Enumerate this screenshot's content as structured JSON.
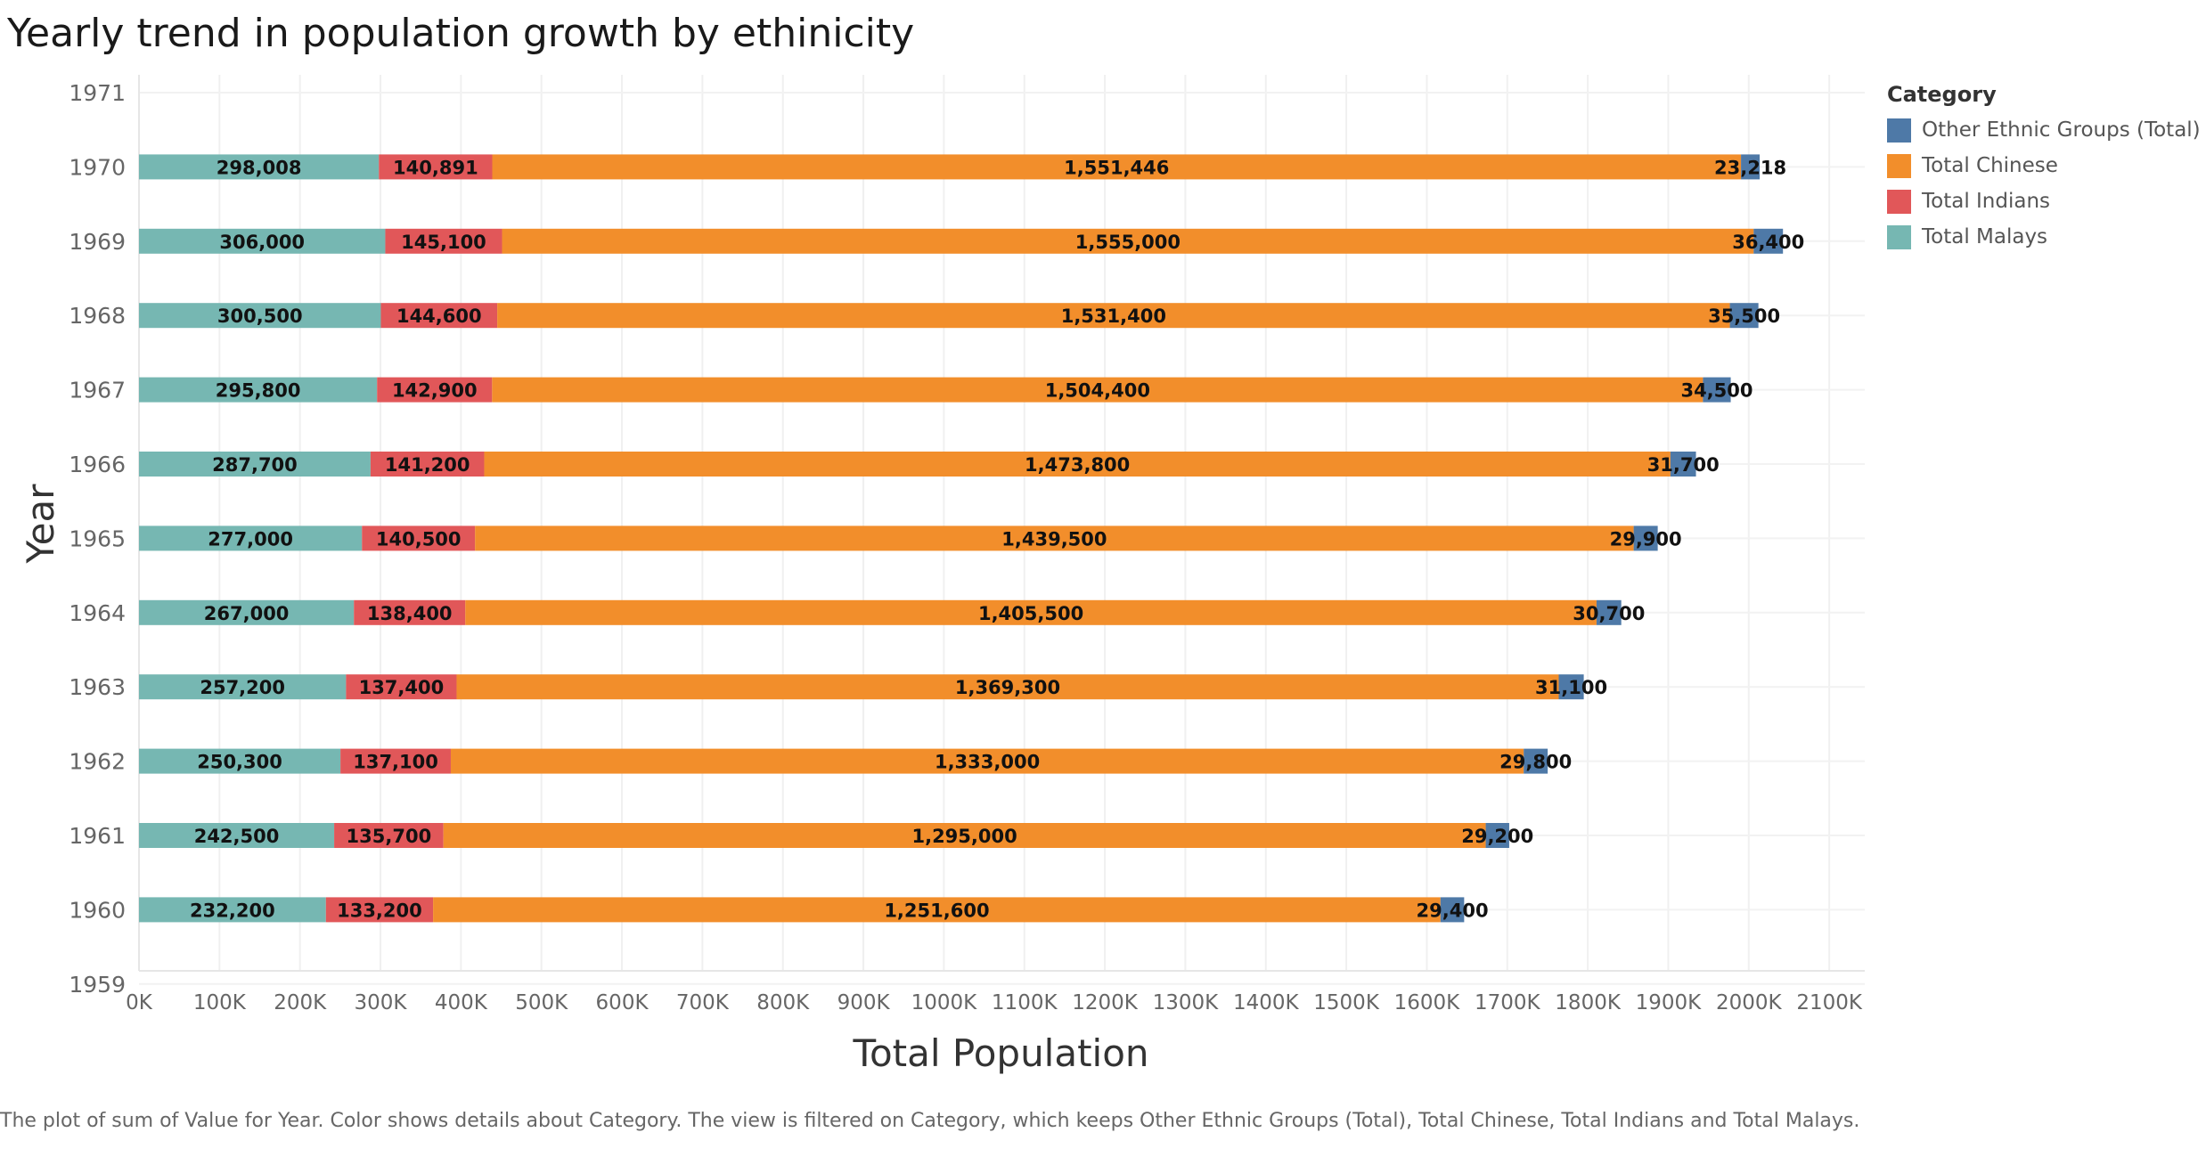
{
  "chart_data": {
    "type": "bar",
    "orientation": "horizontal",
    "stacked": true,
    "title": "Yearly trend in population growth by ethinicity",
    "xlabel": "Total Population",
    "ylabel": "Year",
    "xlim": [
      0,
      2150000
    ],
    "x_ticks": [
      0,
      100000,
      200000,
      300000,
      400000,
      500000,
      600000,
      700000,
      800000,
      900000,
      1000000,
      1100000,
      1200000,
      1300000,
      1400000,
      1500000,
      1600000,
      1700000,
      1800000,
      1900000,
      2000000,
      2100000
    ],
    "x_tick_labels": [
      "0K",
      "100K",
      "200K",
      "300K",
      "400K",
      "500K",
      "600K",
      "700K",
      "800K",
      "900K",
      "1000K",
      "1100K",
      "1200K",
      "1300K",
      "1400K",
      "1500K",
      "1600K",
      "1700K",
      "1800K",
      "1900K",
      "2000K",
      "2100K"
    ],
    "ylim": [
      1959,
      1971
    ],
    "y_ticks": [
      1971,
      1970,
      1969,
      1968,
      1967,
      1966,
      1965,
      1964,
      1963,
      1962,
      1961,
      1960,
      1959
    ],
    "grid": true,
    "legend_position": "right",
    "categories": [
      1970,
      1969,
      1968,
      1967,
      1966,
      1965,
      1964,
      1963,
      1962,
      1961,
      1960
    ],
    "series": [
      {
        "name": "Total Malays",
        "color": "#76b7b2",
        "values": [
          298008,
          306000,
          300500,
          295800,
          287700,
          277000,
          267000,
          257200,
          250300,
          242500,
          232200
        ],
        "labels": [
          "298,008",
          "306,000",
          "300,500",
          "295,800",
          "287,700",
          "277,000",
          "267,000",
          "257,200",
          "250,300",
          "242,500",
          "232,200"
        ]
      },
      {
        "name": "Total Indians",
        "color": "#e15759",
        "values": [
          140891,
          145100,
          144600,
          142900,
          141200,
          140500,
          138400,
          137400,
          137100,
          135700,
          133200
        ],
        "labels": [
          "140,891",
          "145,100",
          "144,600",
          "142,900",
          "141,200",
          "140,500",
          "138,400",
          "137,400",
          "137,100",
          "135,700",
          "133,200"
        ]
      },
      {
        "name": "Total Chinese",
        "color": "#f28e2b",
        "values": [
          1551446,
          1555000,
          1531400,
          1504400,
          1473800,
          1439500,
          1405500,
          1369300,
          1333000,
          1295000,
          1251600
        ],
        "labels": [
          "1,551,446",
          "1,555,000",
          "1,531,400",
          "1,504,400",
          "1,473,800",
          "1,439,500",
          "1,405,500",
          "1,369,300",
          "1,333,000",
          "1,295,000",
          "1,251,600"
        ]
      },
      {
        "name": "Other Ethnic Groups (Total)",
        "color": "#4e79a7",
        "values": [
          23218,
          36400,
          35500,
          34500,
          31700,
          29900,
          30700,
          31100,
          29800,
          29200,
          29400
        ],
        "labels": [
          "23,218",
          "36,400",
          "35,500",
          "34,500",
          "31,700",
          "29,900",
          "30,700",
          "31,100",
          "29,800",
          "29,200",
          "29,400"
        ]
      }
    ]
  },
  "legend": {
    "title": "Category",
    "items": [
      {
        "label": "Other Ethnic Groups (Total)",
        "color": "#4e79a7"
      },
      {
        "label": "Total Chinese",
        "color": "#f28e2b"
      },
      {
        "label": "Total Indians",
        "color": "#e15759"
      },
      {
        "label": "Total Malays",
        "color": "#76b7b2"
      }
    ]
  },
  "caption": "The plot of sum of Value for Year.  Color shows details about Category. The view is filtered on Category, which keeps Other Ethnic Groups (Total), Total Chinese, Total Indians and Total Malays."
}
